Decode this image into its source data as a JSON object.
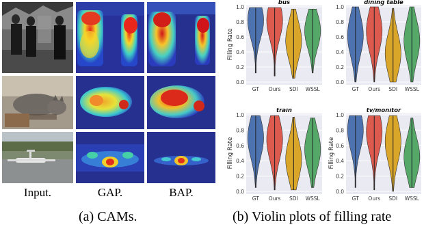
{
  "figure": {
    "column_labels": {
      "input": "Input.",
      "gap": "GAP.",
      "bap": "BAP."
    },
    "captions": {
      "left": "(a) CAMs.",
      "right": "(b) Violin plots of filling rate"
    },
    "cam_rows": [
      {
        "subject": "people-standing-street",
        "colormap": "jet"
      },
      {
        "subject": "cat-crouching",
        "colormap": "jet"
      },
      {
        "subject": "airplane-runway",
        "colormap": "jet"
      }
    ]
  },
  "chart_data": [
    {
      "type": "violin",
      "title": "bus",
      "ylabel": "Filling Rate",
      "xlabel": "",
      "categories": [
        "GT",
        "Ours",
        "SDI",
        "WSSL"
      ],
      "ylim": [
        0.0,
        1.0
      ],
      "yticks": [
        "0.0",
        "0.2",
        "0.4",
        "0.6",
        "0.8",
        "1.0"
      ],
      "series_colors": [
        "#4c72b0",
        "#dd5a4e",
        "#d9a62a",
        "#55a868"
      ],
      "distributions": [
        {
          "min": 0.12,
          "max": 0.99,
          "peak": 0.82
        },
        {
          "min": 0.08,
          "max": 0.99,
          "peak": 0.82
        },
        {
          "min": 0.05,
          "max": 0.97,
          "peak": 0.55
        },
        {
          "min": 0.12,
          "max": 0.97,
          "peak": 0.68
        }
      ],
      "grid": true
    },
    {
      "type": "violin",
      "title": "dining table",
      "ylabel": "",
      "xlabel": "",
      "categories": [
        "GT",
        "Ours",
        "SDI",
        "WSSL"
      ],
      "ylim": [
        0.0,
        1.0
      ],
      "yticks": [
        "0.0",
        "0.2",
        "0.4",
        "0.6",
        "0.8",
        "1.0"
      ],
      "series_colors": [
        "#4c72b0",
        "#dd5a4e",
        "#d9a62a",
        "#55a868"
      ],
      "distributions": [
        {
          "min": 0.0,
          "max": 1.0,
          "peak": 0.62
        },
        {
          "min": 0.0,
          "max": 1.0,
          "peak": 0.68
        },
        {
          "min": 0.0,
          "max": 0.98,
          "peak": 0.38
        },
        {
          "min": 0.0,
          "max": 1.0,
          "peak": 0.55
        }
      ],
      "grid": true
    },
    {
      "type": "violin",
      "title": "train",
      "ylabel": "Filling Rate",
      "xlabel": "",
      "categories": [
        "GT",
        "Ours",
        "SDI",
        "WSSL"
      ],
      "ylim": [
        0.0,
        1.0
      ],
      "yticks": [
        "0.0",
        "0.2",
        "0.4",
        "0.6",
        "0.8",
        "1.0"
      ],
      "series_colors": [
        "#4c72b0",
        "#dd5a4e",
        "#d9a62a",
        "#55a868"
      ],
      "distributions": [
        {
          "min": 0.05,
          "max": 0.99,
          "peak": 0.7
        },
        {
          "min": 0.02,
          "max": 0.99,
          "peak": 0.68
        },
        {
          "min": 0.02,
          "max": 0.97,
          "peak": 0.42
        },
        {
          "min": 0.05,
          "max": 0.96,
          "peak": 0.55
        }
      ],
      "grid": true
    },
    {
      "type": "violin",
      "title": "tv/monitor",
      "ylabel": "Filling Rate",
      "xlabel": "",
      "categories": [
        "GT",
        "Ours",
        "SDI",
        "WSSL"
      ],
      "ylim": [
        0.0,
        1.0
      ],
      "yticks": [
        "0.0",
        "0.2",
        "0.4",
        "0.6",
        "0.8",
        "1.0"
      ],
      "series_colors": [
        "#4c72b0",
        "#dd5a4e",
        "#d9a62a",
        "#55a868"
      ],
      "distributions": [
        {
          "min": 0.05,
          "max": 0.99,
          "peak": 0.8
        },
        {
          "min": 0.02,
          "max": 0.99,
          "peak": 0.78
        },
        {
          "min": 0.0,
          "max": 0.99,
          "peak": 0.65
        },
        {
          "min": 0.05,
          "max": 0.96,
          "peak": 0.45
        }
      ],
      "grid": true
    }
  ]
}
